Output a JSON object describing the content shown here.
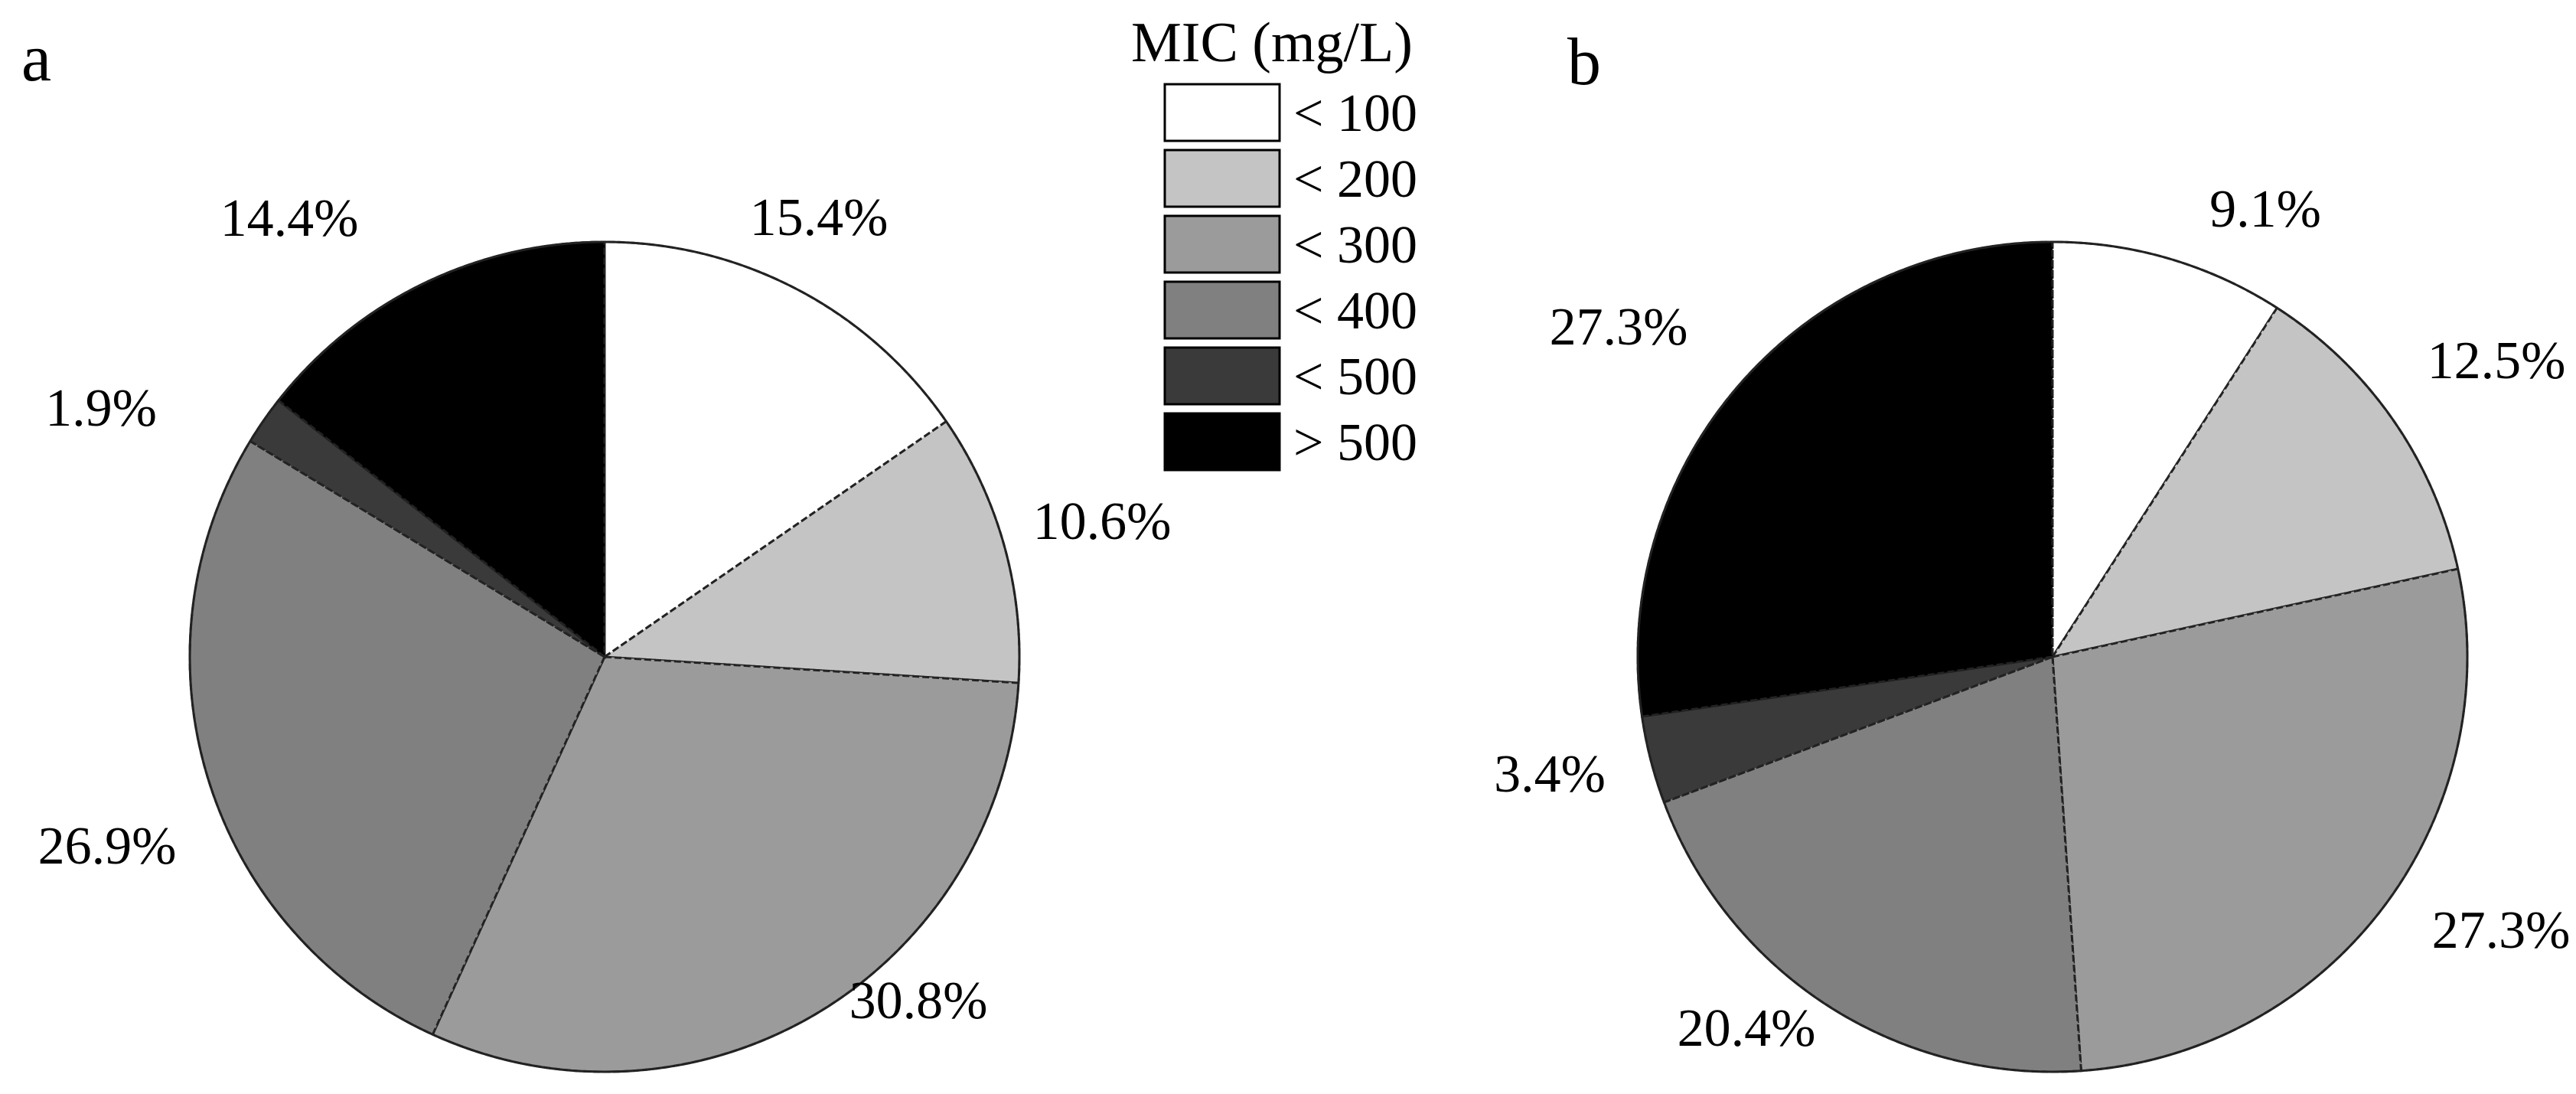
{
  "legend": {
    "title": "MIC (mg/L)",
    "items": [
      {
        "label": "< 100",
        "color": "#ffffff"
      },
      {
        "label": "< 200",
        "color": "#c4c4c4"
      },
      {
        "label": "< 300",
        "color": "#9b9b9b"
      },
      {
        "label": "< 400",
        "color": "#808080"
      },
      {
        "label": "< 500",
        "color": "#3a3a3a"
      },
      {
        "label": "> 500",
        "color": "#000000"
      }
    ]
  },
  "chart_data": [
    {
      "type": "pie",
      "panel": "a",
      "title": "",
      "categories": [
        "< 100",
        "< 200",
        "< 300",
        "< 400",
        "< 500",
        "> 500"
      ],
      "values": [
        15.4,
        10.6,
        30.8,
        26.9,
        1.9,
        14.4
      ],
      "value_labels": [
        "15.4%",
        "10.6%",
        "30.8%",
        "26.9%",
        "1.9%",
        "14.4%"
      ]
    },
    {
      "type": "pie",
      "panel": "b",
      "title": "",
      "categories": [
        "< 100",
        "< 200",
        "< 300",
        "< 400",
        "< 500",
        "> 500"
      ],
      "values": [
        9.1,
        12.5,
        27.3,
        20.4,
        3.4,
        27.3
      ],
      "value_labels": [
        "9.1%",
        "12.5%",
        "27.3%",
        "20.4%",
        "3.4%",
        "27.3%"
      ]
    }
  ]
}
